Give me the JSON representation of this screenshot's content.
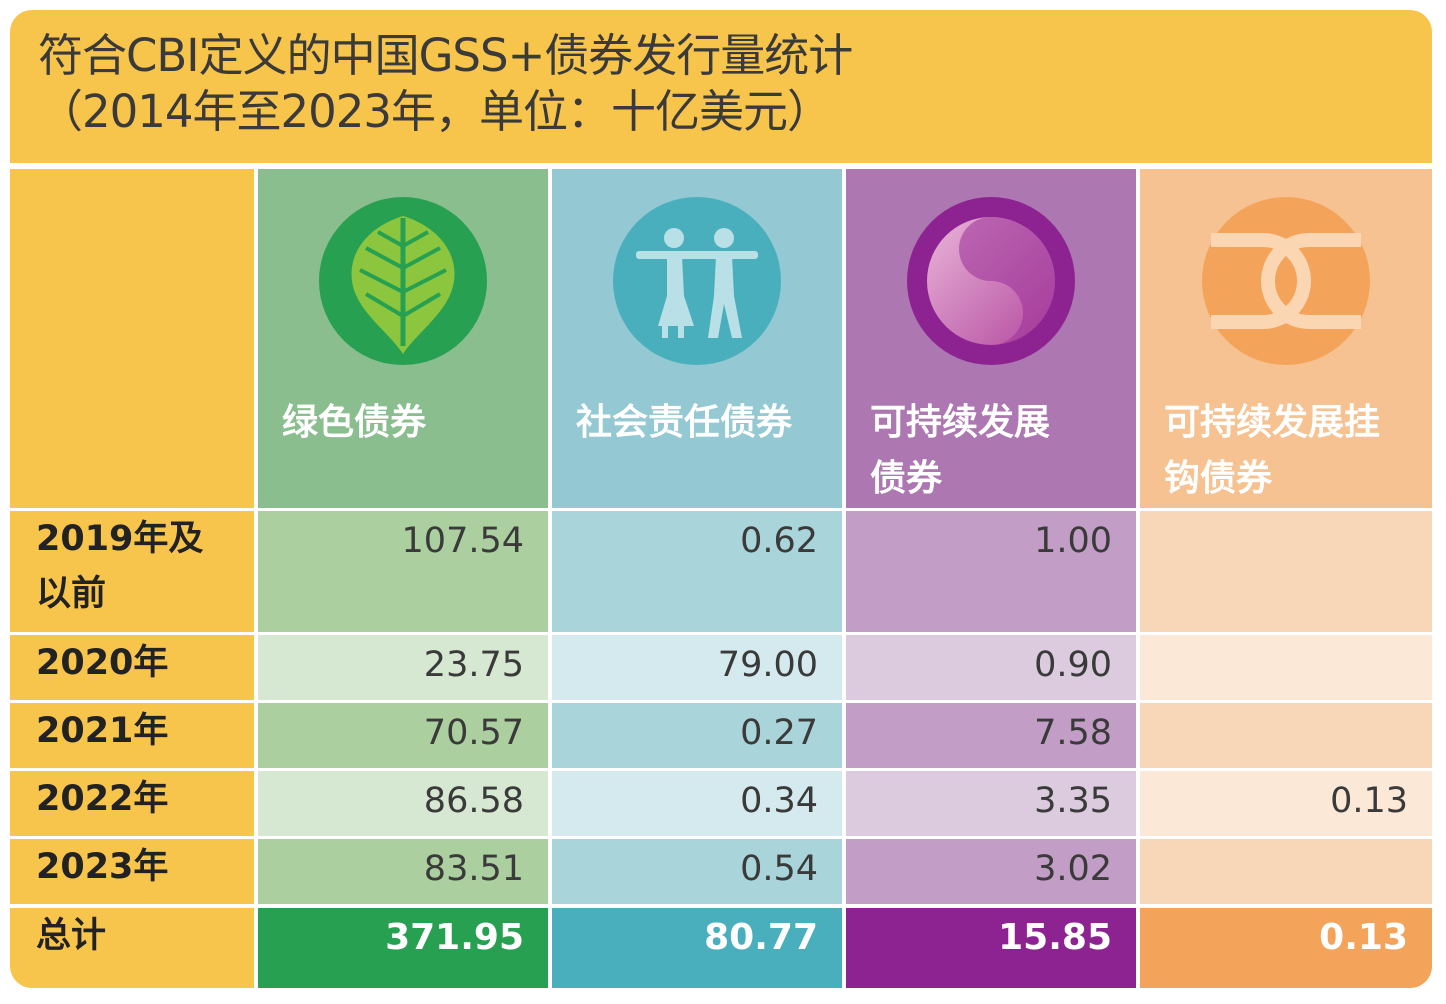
{
  "title": {
    "line1": "符合CBI定义的中国GSS+债券发行量统计",
    "line2": "（2014年至2023年，单位：十亿美元）"
  },
  "columns": [
    {
      "label_line1": "绿色债券",
      "label_line2": "",
      "icon": "leaf-icon"
    },
    {
      "label_line1": "社会责任债券",
      "label_line2": "",
      "icon": "people-icon"
    },
    {
      "label_line1": "可持续发展",
      "label_line2": "债券",
      "icon": "yin-yang-icon"
    },
    {
      "label_line1": "可持续发展挂",
      "label_line2": "钩债券",
      "icon": "interlocking-rings-icon"
    }
  ],
  "rows": [
    {
      "label_line1": "2019年及",
      "label_line2": "以前",
      "values": [
        "107.54",
        "0.62",
        "1.00",
        ""
      ]
    },
    {
      "label_line1": "2020年",
      "label_line2": "",
      "values": [
        "23.75",
        "79.00",
        "0.90",
        ""
      ]
    },
    {
      "label_line1": "2021年",
      "label_line2": "",
      "values": [
        "70.57",
        "0.27",
        "7.58",
        ""
      ]
    },
    {
      "label_line1": "2022年",
      "label_line2": "",
      "values": [
        "86.58",
        "0.34",
        "3.35",
        "0.13"
      ]
    },
    {
      "label_line1": "2023年",
      "label_line2": "",
      "values": [
        "83.51",
        "0.54",
        "3.02",
        ""
      ]
    }
  ],
  "total": {
    "label": "总计",
    "values": [
      "371.95",
      "80.77",
      "15.85",
      "0.13"
    ]
  },
  "colors": {
    "background": "#f8c54c",
    "green": "#27a052",
    "teal": "#4aafbd",
    "purple": "#8d2391",
    "orange": "#f4a45a"
  }
}
